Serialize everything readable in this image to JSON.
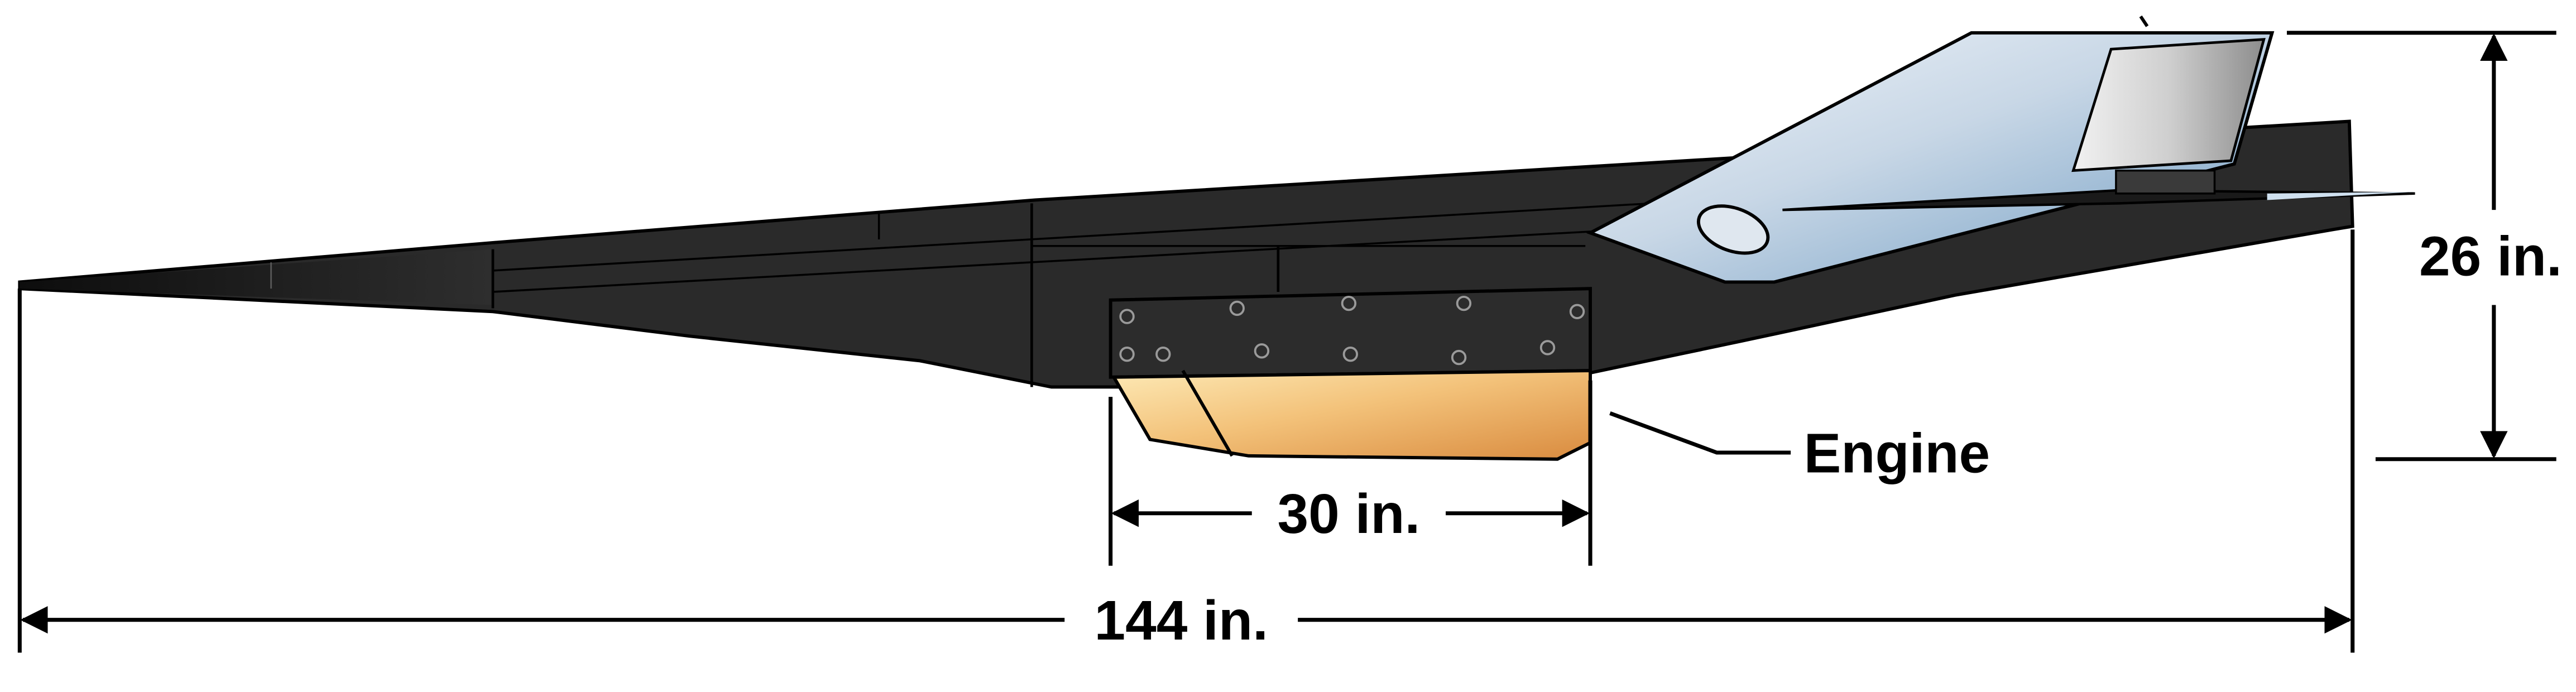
{
  "diagram": {
    "dimensions": {
      "overall_length": "144 in.",
      "engine_length": "30 in.",
      "height": "26 in."
    },
    "callouts": {
      "engine": "Engine"
    }
  },
  "colors": {
    "fuselage": "#2b2b2b",
    "fuselage_dark": "#121212",
    "tail_blue_light": "#e6eef6",
    "tail_blue_dark": "#7f9fbf",
    "engine_gold_light": "#fbe3a6",
    "engine_gold_dark": "#df9a4a"
  }
}
